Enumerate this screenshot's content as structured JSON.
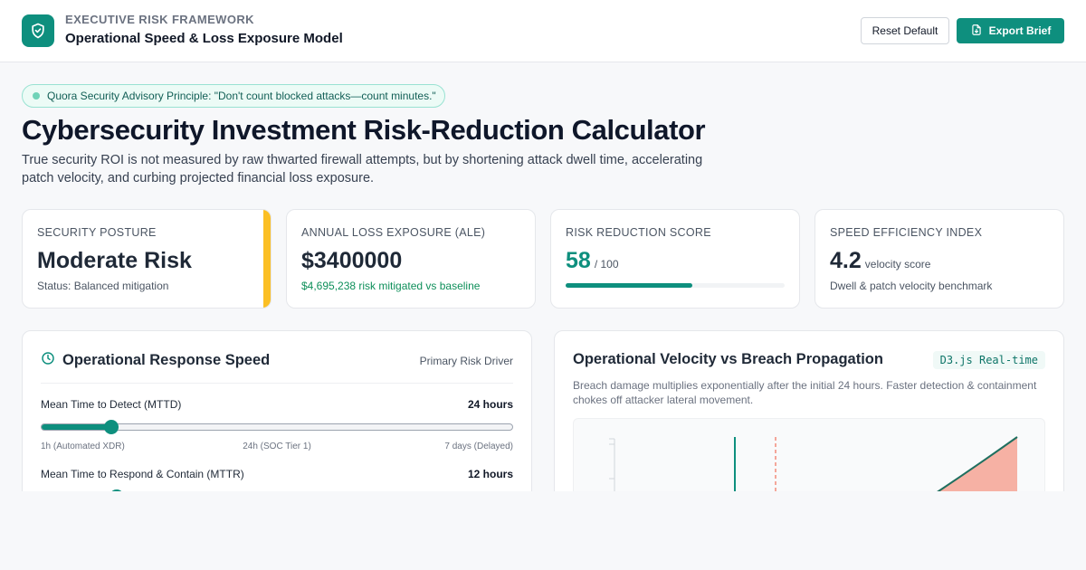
{
  "header": {
    "eyebrow": "EXECUTIVE RISK FRAMEWORK",
    "title": "Operational Speed & Loss Exposure Model",
    "reset_label": "Reset Default",
    "export_label": "Export Brief",
    "logo_icon": "shield-check-icon",
    "export_icon": "file-download-icon"
  },
  "banner": {
    "text": "Quora Security Advisory Principle: \"Don't count blocked attacks—count minutes.\"",
    "dot_color": "#6fd3b8"
  },
  "page": {
    "title": "Cybersecurity Investment Risk-Reduction Calculator",
    "subtitle": "True security ROI is not measured by raw thwarted firewall attempts, but by shortening attack dwell time, accelerating patch velocity, and curbing projected financial loss exposure."
  },
  "cards": {
    "posture": {
      "label": "SECURITY POSTURE",
      "value": "Moderate Risk",
      "sub": "Status: Balanced mitigation",
      "accent_color": "#fbbf24"
    },
    "ale": {
      "label": "ANNUAL LOSS EXPOSURE (ALE)",
      "value": "$3400000",
      "sub": "$4,695,238 risk mitigated vs baseline"
    },
    "score": {
      "label": "RISK REDUCTION SCORE",
      "value": "58",
      "suffix": "/ 100",
      "progress": 0.58
    },
    "speed": {
      "label": "SPEED EFFICIENCY INDEX",
      "value": "4.2",
      "suffix": "velocity score",
      "sub": "Dwell & patch velocity benchmark"
    }
  },
  "speed_panel": {
    "title": "Operational Response Speed",
    "tag": "Primary Risk Driver",
    "title_icon": "clock-icon",
    "sliders": [
      {
        "label": "Mean Time to Detect (MTTD)",
        "value": "24 hours",
        "level": 0.15,
        "ticks": [
          "1h (Automated XDR)",
          "24h (SOC Tier 1)",
          "7 days (Delayed)"
        ]
      },
      {
        "label": "Mean Time to Respond & Contain (MTTR)",
        "value": "12 hours",
        "level": 0.16
      }
    ]
  },
  "chart_panel": {
    "title": "Operational Velocity vs Breach Propagation",
    "badge": "D3.js Real-time",
    "description": "Breach damage multiplies exponentially after the initial 24 hours. Faster detection & containment chokes off attacker lateral movement."
  },
  "colors": {
    "accent": "#0e8f7e",
    "warning": "#fbbf24",
    "danger": "#f28b7a"
  }
}
